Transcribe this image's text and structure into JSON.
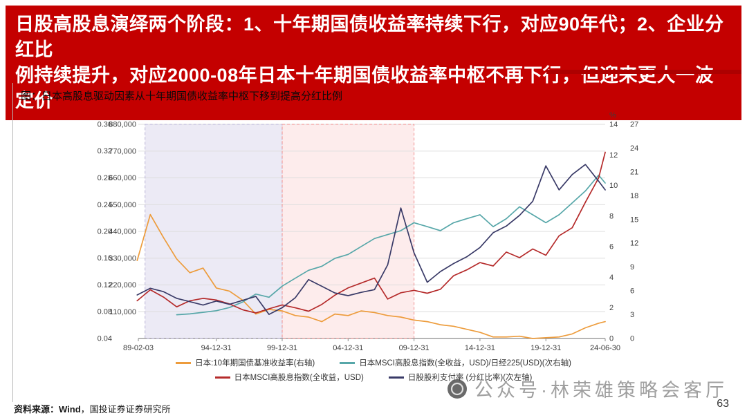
{
  "header": {
    "title_line1": "日股高股息演绎两个阶段：1、十年期国债收益率持续下行，对应90年代；2、企业分红比",
    "title_line2": "例持续提升，对应2000-08年日本十年期国债收益率中枢不再下行，但迎来更大一波定价"
  },
  "figure": {
    "caption": "图：日本高股息驱动因素从十年期国债收益率中枢下移到提高分红比例"
  },
  "footer": {
    "source_prefix": "资料来源：",
    "source_name": "Wind",
    "source_rest": "，国投证券证券研究所",
    "page_number": "63"
  },
  "watermark": {
    "text": "公众号·林荣雄策略会客厅"
  },
  "colors": {
    "banner_red": "#c40000",
    "accent_red": "#ad0000",
    "grid": "#dcdcdc"
  },
  "chart_data": {
    "type": "line",
    "title": "日本高股息驱动因素从十年期国债收益率中枢下移到提高分红比例",
    "xlabel": "",
    "ylabel": "",
    "x_range": [
      1989.09,
      2024.5
    ],
    "x_tick_labels": [
      "89-02-03",
      "94-12-31",
      "99-12-31",
      "04-12-31",
      "09-12-31",
      "14-12-31",
      "19-12-31",
      "24-06-30"
    ],
    "x_tick_positions": [
      1989.09,
      1995.0,
      2000.0,
      2005.0,
      2010.0,
      2015.0,
      2020.0,
      2024.5
    ],
    "axes": {
      "left_secondary": {
        "ticks": [
          "0.36",
          "0.32",
          "0.28",
          "0.24",
          "0.20",
          "0.16",
          "0.12",
          "0.08",
          "0.04"
        ],
        "tick_values": [
          0.36,
          0.32,
          0.28,
          0.24,
          0.2,
          0.16,
          0.12,
          0.08,
          0.04
        ],
        "min": 0.04,
        "max": 0.36,
        "unit": ""
      },
      "left_primary": {
        "ticks": [
          "880,000",
          "770,000",
          "660,000",
          "550,000",
          "440,000",
          "330,000",
          "220,000",
          "110,000"
        ],
        "tick_values": [
          880000,
          770000,
          660000,
          550000,
          440000,
          330000,
          220000,
          110000
        ],
        "min": 0,
        "max": 880000,
        "unit": ""
      },
      "right_primary": {
        "ticks": [
          "14",
          "12",
          "10",
          "8",
          "6",
          "4",
          "2",
          "0"
        ],
        "tick_values": [
          14,
          12,
          10,
          8,
          6,
          4,
          2,
          0
        ],
        "min": 0,
        "max": 14,
        "unit": "%"
      },
      "right_secondary": {
        "ticks": [
          "27",
          "24",
          "21",
          "18",
          "15",
          "12",
          "9",
          "6",
          "3",
          "0"
        ],
        "tick_values": [
          27,
          24,
          21,
          18,
          15,
          12,
          9,
          6,
          3,
          0
        ],
        "min": 0,
        "max": 27,
        "unit": ""
      }
    },
    "bands": [
      {
        "name": "stage-1-rate-downtrend",
        "x_start": 1989.6,
        "x_end": 2000.0,
        "fill": "#eceaf5",
        "border": "#b9b3d6"
      },
      {
        "name": "stage-2-payout-rise",
        "x_start": 2000.0,
        "x_end": 2010.0,
        "fill": "#fdecec",
        "border": "#ef8e8e"
      }
    ],
    "series": [
      {
        "name": "日本:10年期国债基准收益率(右轴)",
        "color": "#ed9c3c",
        "axis": "right_primary",
        "x": [
          1989,
          1990,
          1991,
          1992,
          1993,
          1994,
          1995,
          1996,
          1997,
          1998,
          1999,
          2000,
          2001,
          2002,
          2003,
          2004,
          2005,
          2006,
          2007,
          2008,
          2009,
          2010,
          2011,
          2012,
          2013,
          2014,
          2015,
          2016,
          2017,
          2018,
          2019,
          2020,
          2021,
          2022,
          2023,
          2024,
          2024.5
        ],
        "values": [
          5.1,
          8.1,
          6.6,
          5.2,
          4.3,
          4.6,
          3.3,
          3.1,
          2.5,
          1.6,
          1.9,
          1.8,
          1.5,
          1.4,
          1.1,
          1.6,
          1.5,
          1.8,
          1.7,
          1.5,
          1.4,
          1.2,
          1.1,
          0.9,
          0.8,
          0.6,
          0.4,
          0.1,
          0.1,
          0.15,
          0.0,
          0.05,
          0.1,
          0.3,
          0.7,
          1.0,
          1.1
        ]
      },
      {
        "name": "日本MSCI高股息指数(全收益，USD)/日经225(USD)(次右轴)",
        "color": "#57a7a9",
        "axis": "right_secondary",
        "x": [
          1992,
          1993,
          1994,
          1995,
          1996,
          1997,
          1998,
          1999,
          2000,
          2001,
          2002,
          2003,
          2004,
          2005,
          2006,
          2007,
          2008,
          2009,
          2010,
          2011,
          2012,
          2013,
          2014,
          2015,
          2016,
          2017,
          2018,
          2019,
          2020,
          2021,
          2022,
          2023,
          2024,
          2024.5
        ],
        "values": [
          3.0,
          3.1,
          3.3,
          3.5,
          3.9,
          4.6,
          5.6,
          5.2,
          6.6,
          7.6,
          8.6,
          9.1,
          10.1,
          10.6,
          11.6,
          12.6,
          13.1,
          13.6,
          14.6,
          14.1,
          13.6,
          14.6,
          15.1,
          15.6,
          14.1,
          15.1,
          16.6,
          15.6,
          14.6,
          15.6,
          17.1,
          18.6,
          20.6,
          19.6
        ]
      },
      {
        "name": "日本MSCI高股息指数(全收益，USD)",
        "color": "#b52b2b",
        "axis": "left_primary",
        "x": [
          1989,
          1990,
          1991,
          1992,
          1993,
          1994,
          1995,
          1996,
          1997,
          1998,
          1999,
          2000,
          2001,
          2002,
          2003,
          2004,
          2005,
          2006,
          2007,
          2008,
          2009,
          2010,
          2011,
          2012,
          2013,
          2014,
          2015,
          2016,
          2017,
          2018,
          2019,
          2020,
          2021,
          2022,
          2023,
          2024,
          2024.5
        ],
        "values": [
          155000,
          200000,
          170000,
          130000,
          155000,
          165000,
          158000,
          142000,
          118000,
          105000,
          122000,
          138000,
          126000,
          112000,
          140000,
          178000,
          208000,
          228000,
          248000,
          162000,
          188000,
          198000,
          186000,
          202000,
          258000,
          282000,
          312000,
          298000,
          355000,
          332000,
          368000,
          342000,
          422000,
          455000,
          560000,
          660000,
          765000
        ]
      },
      {
        "name": "日股股利支付率 (分红比率)(次左轴)",
        "color": "#393a67",
        "axis": "left_secondary",
        "x": [
          1989,
          1990,
          1991,
          1992,
          1993,
          1994,
          1995,
          1996,
          1997,
          1998,
          1999,
          2000,
          2001,
          2002,
          2003,
          2004,
          2005,
          2006,
          2007,
          2008,
          2009,
          2010,
          2011,
          2012,
          2013,
          2014,
          2015,
          2016,
          2017,
          2018,
          2019,
          2020,
          2021,
          2022,
          2023,
          2024,
          2024.5
        ],
        "values": [
          0.105,
          0.115,
          0.11,
          0.1,
          0.095,
          0.09,
          0.096,
          0.091,
          0.097,
          0.103,
          0.076,
          0.086,
          0.101,
          0.128,
          0.118,
          0.108,
          0.104,
          0.109,
          0.113,
          0.15,
          0.235,
          0.168,
          0.124,
          0.14,
          0.152,
          0.162,
          0.176,
          0.198,
          0.208,
          0.224,
          0.245,
          0.298,
          0.262,
          0.285,
          0.3,
          0.275,
          0.262
        ]
      }
    ],
    "legend_position": "bottom",
    "grid": true
  }
}
